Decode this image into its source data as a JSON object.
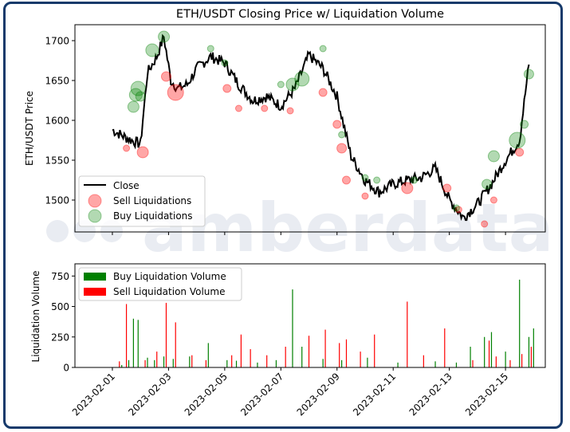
{
  "watermark": "amberdata",
  "colors": {
    "frame": "#163a6b",
    "close": "#000000",
    "sell": "#ff0000",
    "buy": "#008000",
    "watermark": "#e9ecf2"
  },
  "chart_data": [
    {
      "type": "line",
      "title": "ETH/USDT Closing Price w/ Liquidation Volume",
      "xlabel": "",
      "ylabel": "ETH/USDT Price",
      "ylim": [
        1460,
        1720
      ],
      "yticks": [
        1500,
        1550,
        1600,
        1650,
        1700
      ],
      "xlim": [
        "2023-01-30T16:00",
        "2023-02-16T10:00"
      ],
      "legend": {
        "placement": "lower-left",
        "entries": [
          "Close",
          "Sell Liquidations",
          "Buy Liquidations"
        ]
      },
      "series": [
        {
          "name": "Close",
          "x": [
            "2023-02-01T00:00",
            "2023-02-01T12:00",
            "2023-02-02T00:00",
            "2023-02-02T06:00",
            "2023-02-02T14:00",
            "2023-02-02T20:00",
            "2023-02-03T02:00",
            "2023-02-03T08:00",
            "2023-02-03T16:00",
            "2023-02-04T00:00",
            "2023-02-04T12:00",
            "2023-02-05T00:00",
            "2023-02-05T12:00",
            "2023-02-06T00:00",
            "2023-02-06T12:00",
            "2023-02-07T00:00",
            "2023-02-07T12:00",
            "2023-02-08T00:00",
            "2023-02-08T12:00",
            "2023-02-09T00:00",
            "2023-02-09T12:00",
            "2023-02-10T00:00",
            "2023-02-10T12:00",
            "2023-02-11T00:00",
            "2023-02-11T12:00",
            "2023-02-12T00:00",
            "2023-02-12T12:00",
            "2023-02-13T00:00",
            "2023-02-13T12:00",
            "2023-02-14T00:00",
            "2023-02-14T12:00",
            "2023-02-15T00:00",
            "2023-02-15T12:00",
            "2023-02-15T20:00"
          ],
          "y": [
            1588,
            1578,
            1570,
            1660,
            1680,
            1705,
            1650,
            1640,
            1645,
            1665,
            1680,
            1672,
            1645,
            1625,
            1630,
            1618,
            1640,
            1682,
            1665,
            1630,
            1555,
            1525,
            1510,
            1520,
            1525,
            1528,
            1540,
            1500,
            1478,
            1495,
            1520,
            1550,
            1575,
            1670
          ]
        }
      ],
      "sell_liquidations": {
        "x": [
          "2023-02-01T12:00",
          "2023-02-02T02:00",
          "2023-02-02T22:00",
          "2023-02-03T06:00",
          "2023-02-05T02:00",
          "2023-02-05T12:00",
          "2023-02-06T10:00",
          "2023-02-07T08:00",
          "2023-02-08T12:00",
          "2023-02-09T00:00",
          "2023-02-09T04:00",
          "2023-02-09T08:00",
          "2023-02-10T00:00",
          "2023-02-11T12:00",
          "2023-02-12T22:00",
          "2023-02-13T08:00",
          "2023-02-14T06:00",
          "2023-02-14T14:00",
          "2023-02-15T12:00"
        ],
        "y": [
          1565,
          1560,
          1655,
          1635,
          1640,
          1615,
          1615,
          1612,
          1635,
          1595,
          1565,
          1525,
          1505,
          1515,
          1515,
          1488,
          1470,
          1500,
          1560
        ],
        "size": [
          4,
          7,
          6,
          10,
          5,
          4,
          4,
          4,
          5,
          5,
          6,
          5,
          4,
          7,
          5,
          4,
          4,
          4,
          5
        ]
      },
      "buy_liquidations": {
        "x": [
          "2023-02-01T18:00",
          "2023-02-01T20:00",
          "2023-02-01T22:00",
          "2023-02-02T00:00",
          "2023-02-02T10:00",
          "2023-02-02T20:00",
          "2023-02-04T12:00",
          "2023-02-05T00:00",
          "2023-02-07T00:00",
          "2023-02-07T10:00",
          "2023-02-07T18:00",
          "2023-02-08T12:00",
          "2023-02-09T04:00",
          "2023-02-10T00:00",
          "2023-02-10T10:00",
          "2023-02-11T18:00",
          "2023-02-13T06:00",
          "2023-02-14T08:00",
          "2023-02-14T14:00",
          "2023-02-15T10:00",
          "2023-02-15T16:00",
          "2023-02-15T20:00"
        ],
        "y": [
          1617,
          1632,
          1640,
          1630,
          1688,
          1705,
          1690,
          1672,
          1645,
          1645,
          1652,
          1690,
          1582,
          1528,
          1525,
          1525,
          1490,
          1520,
          1555,
          1575,
          1595,
          1658
        ],
        "size": [
          7,
          8,
          9,
          6,
          8,
          7,
          4,
          4,
          4,
          8,
          9,
          4,
          4,
          4,
          4,
          4,
          4,
          6,
          7,
          10,
          5,
          6
        ]
      }
    },
    {
      "type": "bar",
      "xlabel": "",
      "ylabel": "Liquidation Volume",
      "ylim": [
        0,
        850
      ],
      "yticks": [
        0,
        250,
        500,
        750
      ],
      "xticks": [
        "2023-02-01",
        "2023-02-03",
        "2023-02-05",
        "2023-02-07",
        "2023-02-09",
        "2023-02-11",
        "2023-02-13",
        "2023-02-15"
      ],
      "legend": {
        "placement": "upper-left",
        "entries": [
          "Buy Liquidation Volume",
          "Sell Liquidation Volume"
        ]
      },
      "series": [
        {
          "name": "Buy Liquidation Volume",
          "x": [
            "2023-02-01T08:00",
            "2023-02-01T14:00",
            "2023-02-01T18:00",
            "2023-02-01T22:00",
            "2023-02-02T06:00",
            "2023-02-02T12:00",
            "2023-02-02T20:00",
            "2023-02-03T04:00",
            "2023-02-03T18:00",
            "2023-02-04T10:00",
            "2023-02-05T02:00",
            "2023-02-05T10:00",
            "2023-02-06T04:00",
            "2023-02-06T20:00",
            "2023-02-07T10:00",
            "2023-02-07T18:00",
            "2023-02-08T12:00",
            "2023-02-09T04:00",
            "2023-02-10T02:00",
            "2023-02-11T04:00",
            "2023-02-12T12:00",
            "2023-02-13T06:00",
            "2023-02-13T18:00",
            "2023-02-14T06:00",
            "2023-02-14T12:00",
            "2023-02-15T00:00",
            "2023-02-15T12:00",
            "2023-02-15T20:00",
            "2023-02-16T00:00"
          ],
          "values": [
            20,
            60,
            400,
            390,
            80,
            60,
            90,
            70,
            90,
            200,
            60,
            55,
            40,
            60,
            640,
            170,
            70,
            60,
            80,
            40,
            50,
            40,
            170,
            250,
            290,
            130,
            720,
            250,
            320
          ]
        },
        {
          "name": "Sell Liquidation Volume",
          "x": [
            "2023-02-01T06:00",
            "2023-02-01T12:00",
            "2023-02-02T04:00",
            "2023-02-02T14:00",
            "2023-02-02T22:00",
            "2023-02-03T06:00",
            "2023-02-03T20:00",
            "2023-02-04T08:00",
            "2023-02-05T06:00",
            "2023-02-05T14:00",
            "2023-02-05T22:00",
            "2023-02-06T12:00",
            "2023-02-07T04:00",
            "2023-02-08T00:00",
            "2023-02-08T14:00",
            "2023-02-09T02:00",
            "2023-02-09T08:00",
            "2023-02-09T20:00",
            "2023-02-10T08:00",
            "2023-02-11T12:00",
            "2023-02-12T02:00",
            "2023-02-12T20:00",
            "2023-02-13T20:00",
            "2023-02-14T10:00",
            "2023-02-14T16:00",
            "2023-02-15T04:00",
            "2023-02-15T14:00",
            "2023-02-15T22:00"
          ],
          "values": [
            50,
            520,
            60,
            130,
            530,
            370,
            100,
            60,
            100,
            270,
            150,
            100,
            170,
            260,
            310,
            200,
            230,
            130,
            270,
            540,
            100,
            320,
            60,
            220,
            90,
            60,
            110,
            170
          ]
        }
      ]
    }
  ]
}
